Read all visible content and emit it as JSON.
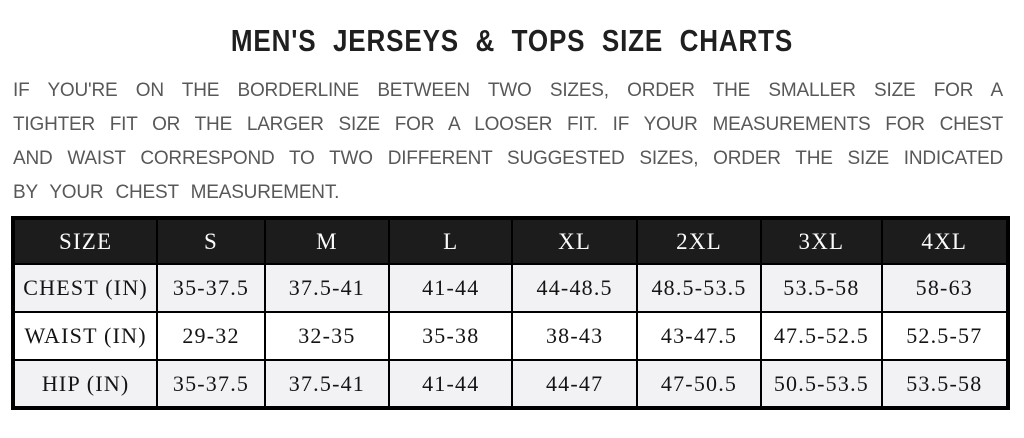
{
  "title": "MEN'S JERSEYS & TOPS SIZE CHARTS",
  "intro": {
    "lines": [
      "IF YOU'RE ON THE BORDERLINE BETWEEN TWO SIZES, ORDER THE SMALLER SIZE FOR A",
      "TIGHTER FIT OR THE LARGER SIZE FOR A LOOSER FIT. IF YOUR MEASUREMENTS FOR CHEST",
      "AND WAIST CORRESPOND TO TWO DIFFERENT SUGGESTED SIZES, ORDER THE SIZE INDICATED",
      "BY YOUR CHEST MEASUREMENT."
    ]
  },
  "table": {
    "columns": [
      "SIZE",
      "S",
      "M",
      "L",
      "XL",
      "2XL",
      "3XL",
      "4XL"
    ],
    "rows": [
      {
        "label": "CHEST (IN)",
        "cells": [
          "35-37.5",
          "37.5-41",
          "41-44",
          "44-48.5",
          "48.5-53.5",
          "53.5-58",
          "58-63"
        ]
      },
      {
        "label": "WAIST (IN)",
        "cells": [
          "29-32",
          "32-35",
          "35-38",
          "38-43",
          "43-47.5",
          "47.5-52.5",
          "52.5-57"
        ]
      },
      {
        "label": "HIP (IN)",
        "cells": [
          "35-37.5",
          "37.5-41",
          "41-44",
          "44-47",
          "47-50.5",
          "50.5-53.5",
          "53.5-58"
        ]
      }
    ]
  },
  "colors": {
    "header_bg": "#1c1c1c",
    "header_text": "#fafafa",
    "stripe_row_bg": "#f2f2f4",
    "white_row_bg": "#ffffff",
    "border": "#000000",
    "title_text": "#1f1f1f",
    "paragraph_text": "#58585a"
  }
}
